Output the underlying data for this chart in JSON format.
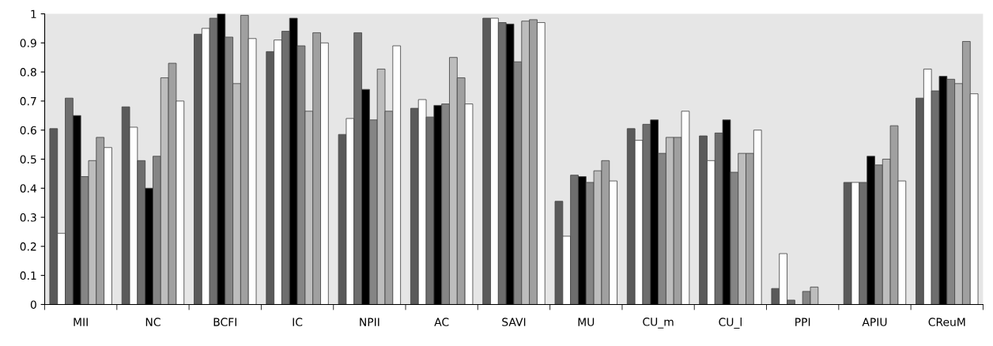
{
  "chart_data": {
    "type": "bar",
    "categories": [
      "MII",
      "NC",
      "BCFI",
      "IC",
      "NPII",
      "AC",
      "SAVI",
      "MU",
      "CU_m",
      "CU_l",
      "PPI",
      "APIU",
      "CReuM"
    ],
    "series": [
      {
        "color": "#5a5a5a",
        "values": [
          0.605,
          0.68,
          0.93,
          0.87,
          0.585,
          0.675,
          0.985,
          0.355,
          0.605,
          0.58,
          0.055,
          0.42,
          0.71
        ]
      },
      {
        "color": "#ffffff",
        "values": [
          0.245,
          0.61,
          0.95,
          0.91,
          0.64,
          0.705,
          0.985,
          0.235,
          0.565,
          0.495,
          0.175,
          0.42,
          0.81
        ]
      },
      {
        "color": "#6e6e6e",
        "values": [
          0.71,
          0.495,
          0.985,
          0.94,
          0.935,
          0.645,
          0.97,
          0.445,
          0.62,
          0.59,
          0.015,
          0.42,
          0.735
        ]
      },
      {
        "color": "#000000",
        "values": [
          0.65,
          0.4,
          1.0,
          0.985,
          0.74,
          0.685,
          0.965,
          0.44,
          0.635,
          0.635,
          null,
          0.51,
          0.785
        ]
      },
      {
        "color": "#858585",
        "values": [
          0.44,
          0.51,
          0.92,
          0.89,
          0.635,
          0.69,
          0.835,
          0.42,
          0.52,
          0.455,
          0.045,
          0.48,
          0.775
        ]
      },
      {
        "color": "#bdbdbd",
        "values": [
          0.495,
          0.78,
          0.76,
          0.665,
          0.81,
          0.85,
          0.975,
          0.46,
          0.575,
          0.52,
          0.06,
          0.5,
          0.76
        ]
      },
      {
        "color": "#a0a0a0",
        "values": [
          0.575,
          0.83,
          0.995,
          0.935,
          0.665,
          0.78,
          0.98,
          0.495,
          0.575,
          0.52,
          null,
          0.615,
          0.905
        ]
      },
      {
        "color": "#fefefe",
        "values": [
          0.54,
          0.7,
          0.915,
          0.9,
          0.89,
          0.69,
          0.97,
          0.425,
          0.665,
          0.6,
          null,
          0.425,
          0.725
        ]
      }
    ],
    "ylim": [
      0,
      1
    ],
    "yticks": [
      0,
      0.1,
      0.2,
      0.3,
      0.4,
      0.5,
      0.6,
      0.7,
      0.8,
      0.9,
      1
    ],
    "grid": false
  }
}
